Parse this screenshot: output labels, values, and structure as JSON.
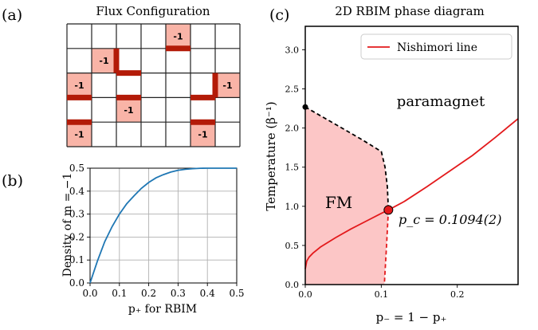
{
  "chart_data": [
    {
      "type": "heatmap",
      "panel_label": "(a)",
      "title": "Flux Configuration",
      "grid": {
        "cols": 7,
        "rows": 5
      },
      "cell_label": "-1",
      "flux_cells": [
        {
          "col": 4,
          "row": 0
        },
        {
          "col": 1,
          "row": 1
        },
        {
          "col": 0,
          "row": 2
        },
        {
          "col": 6,
          "row": 2
        },
        {
          "col": 2,
          "row": 3
        },
        {
          "col": 0,
          "row": 4
        },
        {
          "col": 5,
          "row": 4
        }
      ],
      "colors": {
        "cell": "#f9b4a7",
        "bond": "#b31b08",
        "grid": "#222222"
      }
    },
    {
      "type": "line",
      "panel_label": "(b)",
      "xlabel": "p₊ for RBIM",
      "ylabel": "Density of m = −1",
      "xlim": [
        0,
        0.5
      ],
      "ylim": [
        0,
        0.5
      ],
      "xticks": [
        "0.0",
        "0.1",
        "0.2",
        "0.3",
        "0.4",
        "0.5"
      ],
      "yticks": [
        "0.0",
        "0.1",
        "0.2",
        "0.3",
        "0.4",
        "0.5"
      ],
      "grid": true,
      "series": [
        {
          "color": "#1f77b4",
          "x": [
            0,
            0.025,
            0.05,
            0.075,
            0.1,
            0.125,
            0.15,
            0.175,
            0.2,
            0.225,
            0.25,
            0.275,
            0.3,
            0.325,
            0.35,
            0.375,
            0.4,
            0.45,
            0.5
          ],
          "y": [
            0,
            0.095,
            0.18,
            0.245,
            0.3,
            0.345,
            0.38,
            0.412,
            0.438,
            0.458,
            0.472,
            0.483,
            0.491,
            0.495,
            0.498,
            0.4995,
            0.5,
            0.5,
            0.5
          ]
        }
      ]
    },
    {
      "type": "area",
      "panel_label": "(c)",
      "title": "2D RBIM phase diagram",
      "xlabel": "p₋ = 1 − p₊",
      "ylabel": "Temperature (β⁻¹)",
      "xlim": [
        0,
        0.28
      ],
      "ylim": [
        0,
        3.3
      ],
      "xticks": [
        "0.0",
        "0.1",
        "0.2"
      ],
      "yticks": [
        "0.0",
        "0.5",
        "1.0",
        "1.5",
        "2.0",
        "2.5",
        "3.0"
      ],
      "legend": {
        "position": "top-right",
        "entries": [
          "Nishimori line"
        ]
      },
      "region_labels": {
        "fm": "FM",
        "para": "paramagnet"
      },
      "annotation": "p_c = 0.1094(2)",
      "critical_point": {
        "x": 0.1094,
        "y": 0.953
      },
      "onsager_point": {
        "x": 0,
        "y": 2.269
      },
      "phase_boundary": [
        [
          0,
          2.269
        ],
        [
          0.025,
          2.13
        ],
        [
          0.05,
          1.99
        ],
        [
          0.075,
          1.85
        ],
        [
          0.1,
          1.7
        ],
        [
          0.105,
          1.5
        ],
        [
          0.108,
          1.25
        ],
        [
          0.1094,
          0.953
        ],
        [
          0.107,
          0.5
        ],
        [
          0.104,
          0.0
        ]
      ],
      "nishimori_line": [
        [
          0,
          0.2
        ],
        [
          0.002,
          0.3
        ],
        [
          0.005,
          0.35
        ],
        [
          0.01,
          0.4
        ],
        [
          0.02,
          0.48
        ],
        [
          0.04,
          0.6
        ],
        [
          0.06,
          0.71
        ],
        [
          0.08,
          0.81
        ],
        [
          0.1,
          0.91
        ],
        [
          0.1094,
          0.953
        ],
        [
          0.13,
          1.06
        ],
        [
          0.16,
          1.25
        ],
        [
          0.19,
          1.45
        ],
        [
          0.22,
          1.65
        ],
        [
          0.25,
          1.88
        ],
        [
          0.28,
          2.12
        ]
      ],
      "colors": {
        "fm_fill": "#fcc6c6",
        "boundary": "#000000",
        "nishimori": "#e31a1c",
        "point": "#e31a1c"
      }
    }
  ]
}
